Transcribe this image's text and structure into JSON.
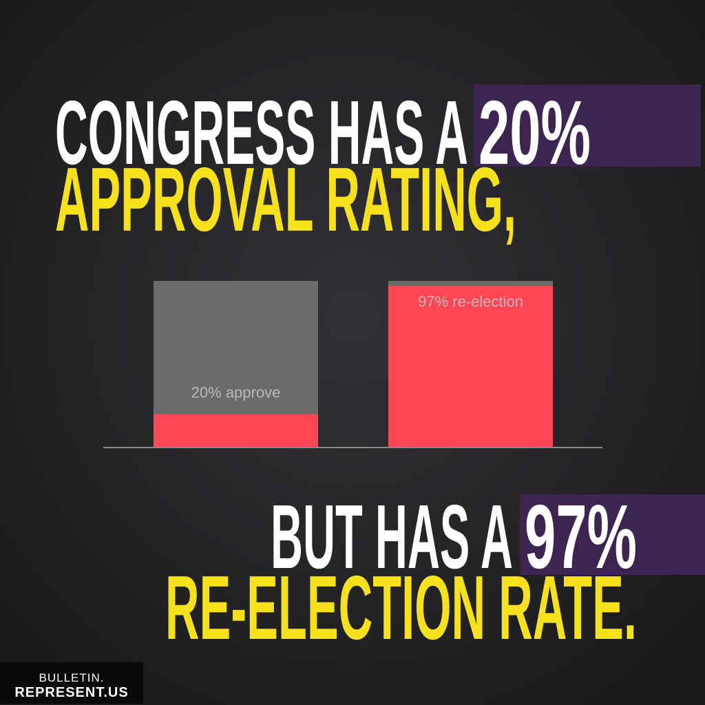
{
  "headline": {
    "line1": "CONGRESS HAS A",
    "line1_highlight": "20%",
    "line2": "APPROVAL RATING,",
    "line3": "BUT HAS A",
    "line3_highlight": "97%",
    "line4": "RE-ELECTION RATE."
  },
  "footer": {
    "line1": "BULLETIN.",
    "line2": "REPRESENT.US"
  },
  "chart_data": {
    "type": "bar",
    "categories": [
      null,
      null
    ],
    "values": [
      20,
      97
    ],
    "value_labels": [
      "20% approve",
      "97% re-election"
    ],
    "color": "#ff4655",
    "background_color": "#6b6b6b",
    "ylim": [
      0,
      100
    ]
  }
}
